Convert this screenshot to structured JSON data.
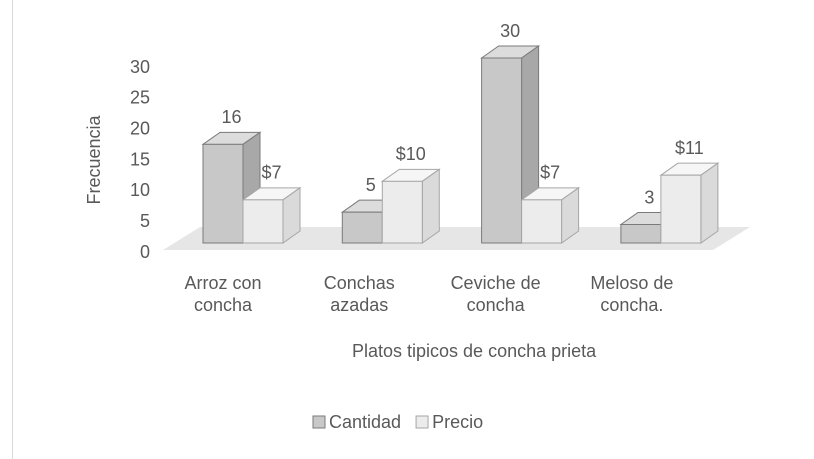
{
  "chart_data": {
    "type": "bar3d",
    "categories": [
      "Arroz con concha",
      "Conchas azadas",
      "Ceviche de concha",
      "Meloso de concha."
    ],
    "series": [
      {
        "name": "Cantidad",
        "color": "#c8c8c8",
        "values": [
          16,
          5,
          30,
          3
        ]
      },
      {
        "name": "Precio",
        "color": "#ececec",
        "values": [
          7,
          10,
          7,
          11
        ],
        "value_labels": [
          "$7",
          "$10",
          "$7",
          "$11"
        ]
      }
    ],
    "xlabel": "Platos tipicos  de concha prieta",
    "ylabel": "Frecuencia",
    "ylim": [
      0,
      30
    ],
    "yticks": [
      0,
      5,
      10,
      15,
      20,
      25,
      30
    ],
    "legend": "bottom"
  }
}
